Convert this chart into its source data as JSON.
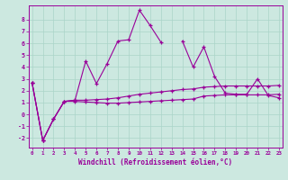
{
  "xlabel": "Windchill (Refroidissement éolien,°C)",
  "background_color": "#cce8e0",
  "grid_color": "#aad4c8",
  "line_color": "#990099",
  "x_vals": [
    0,
    1,
    2,
    3,
    4,
    5,
    6,
    7,
    8,
    9,
    10,
    11,
    12,
    13,
    14,
    15,
    16,
    17,
    18,
    19,
    20,
    21,
    22,
    23
  ],
  "series1": [
    2.7,
    -2.2,
    -0.4,
    1.1,
    1.2,
    4.5,
    2.6,
    4.3,
    6.2,
    6.3,
    8.8,
    7.5,
    6.1,
    null,
    6.2,
    4.0,
    5.7,
    3.2,
    1.8,
    1.7,
    1.7,
    3.0,
    1.6,
    1.4
  ],
  "series2": [
    2.7,
    -2.2,
    -0.4,
    1.1,
    1.1,
    1.05,
    1.0,
    0.95,
    0.95,
    1.0,
    1.05,
    1.1,
    1.15,
    1.2,
    1.25,
    1.3,
    1.55,
    1.6,
    1.65,
    1.65,
    1.65,
    1.65,
    1.65,
    1.7
  ],
  "series3": [
    2.7,
    -2.2,
    -0.4,
    1.1,
    1.2,
    1.2,
    1.25,
    1.3,
    1.4,
    1.55,
    1.7,
    1.8,
    1.9,
    2.0,
    2.1,
    2.15,
    2.3,
    2.35,
    2.4,
    2.4,
    2.4,
    2.4,
    2.4,
    2.45
  ],
  "ylim": [
    -2.8,
    9.2
  ],
  "xlim": [
    -0.3,
    23.3
  ],
  "yticks": [
    -2,
    -1,
    0,
    1,
    2,
    3,
    4,
    5,
    6,
    7,
    8
  ],
  "xticks": [
    0,
    1,
    2,
    3,
    4,
    5,
    6,
    7,
    8,
    9,
    10,
    11,
    12,
    13,
    14,
    15,
    16,
    17,
    18,
    19,
    20,
    21,
    22,
    23
  ]
}
